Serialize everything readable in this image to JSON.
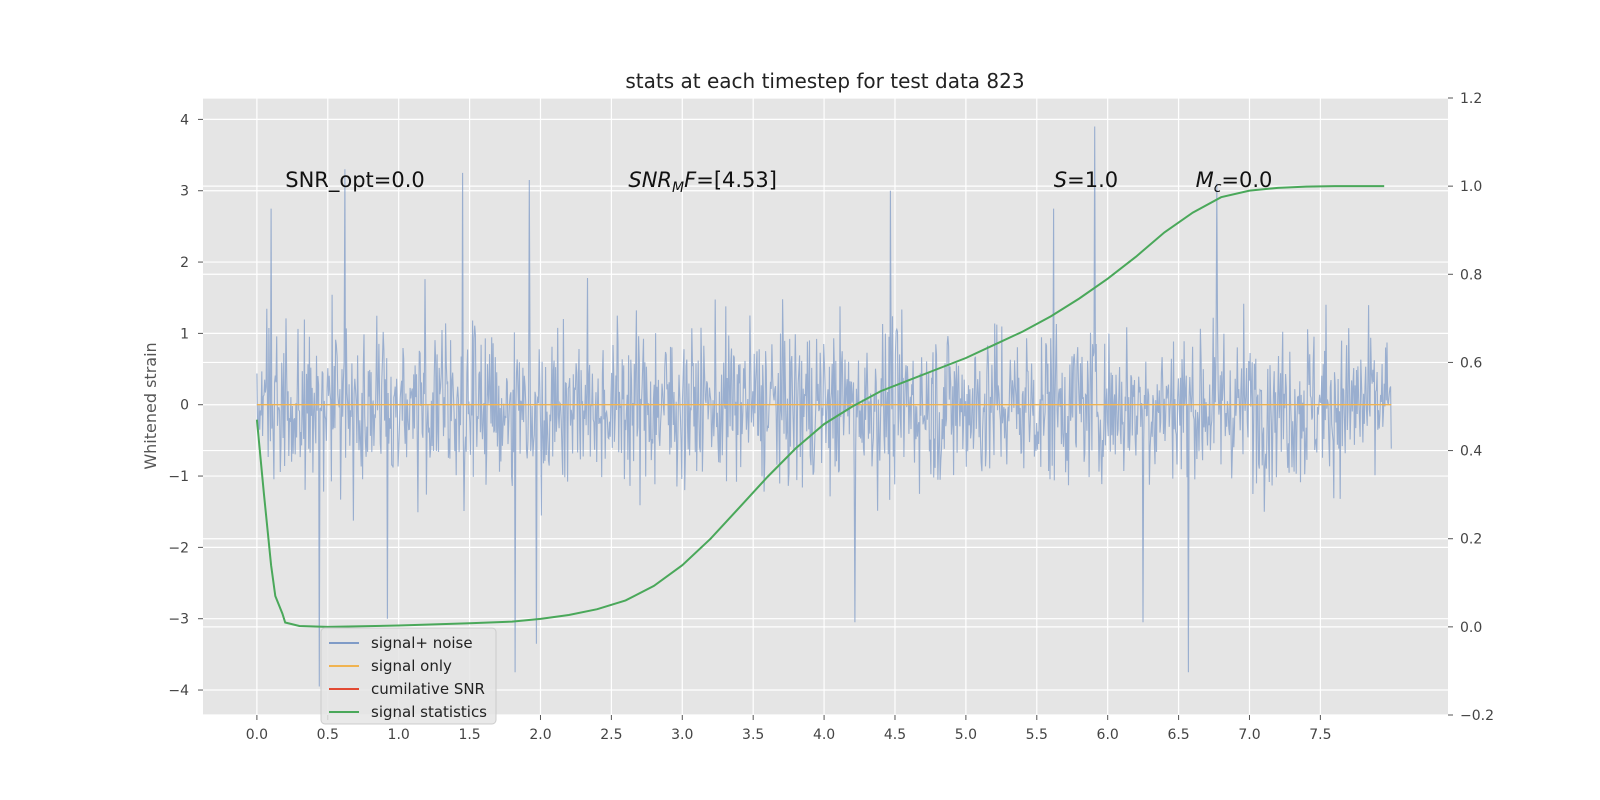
{
  "chart_data": {
    "type": "line",
    "title": "stats at each timestep for test data 823",
    "xlabel": "",
    "ylabel": "Whitened strain",
    "y2label": "",
    "xlim": [
      -0.38,
      8.4
    ],
    "ylim": [
      -4.35,
      4.3
    ],
    "y2lim": [
      -0.2,
      1.2
    ],
    "x_ticks": [
      "0.0",
      "0.5",
      "1.0",
      "1.5",
      "2.0",
      "2.5",
      "3.0",
      "3.5",
      "4.0",
      "4.5",
      "5.0",
      "5.5",
      "6.0",
      "6.5",
      "7.0",
      "7.5"
    ],
    "y_ticks": [
      "4",
      "3",
      "2",
      "1",
      "0",
      "−1",
      "−2",
      "−3",
      "−4"
    ],
    "y2_ticks": [
      "1.2",
      "1.0",
      "0.8",
      "0.6",
      "0.4",
      "0.2",
      "0.0",
      "−0.2"
    ],
    "grid": true,
    "legend_position": "bottom-left",
    "annotations": [
      {
        "text": "SNR_opt=0.0",
        "x": 0.2,
        "y": 3.05
      },
      {
        "text": "SNR",
        "sub": "M",
        "suffix": "F=[4.53]",
        "italic": true,
        "x": 2.62,
        "y": 3.05
      },
      {
        "text": "S",
        "suffix": "=1.0",
        "italic": true,
        "x": 5.62,
        "y": 3.05
      },
      {
        "text": "M",
        "sub": "c",
        "suffix": "=0.0",
        "italic": true,
        "x": 6.62,
        "y": 3.05
      }
    ],
    "noise_envelope": {
      "x_range": [
        0.0,
        8.0
      ],
      "typical_abs": 1.8,
      "extremes": [
        {
          "x": 0.1,
          "y": 2.75
        },
        {
          "x": 0.62,
          "y": 3.3
        },
        {
          "x": 1.45,
          "y": 3.25
        },
        {
          "x": 1.92,
          "y": 3.15
        },
        {
          "x": 4.47,
          "y": 3.0
        },
        {
          "x": 5.62,
          "y": 2.75
        },
        {
          "x": 5.91,
          "y": 3.9
        },
        {
          "x": 6.77,
          "y": 3.1
        },
        {
          "x": 0.44,
          "y": -3.95
        },
        {
          "x": 0.92,
          "y": -3.0
        },
        {
          "x": 1.82,
          "y": -3.75
        },
        {
          "x": 1.97,
          "y": -3.35
        },
        {
          "x": 4.22,
          "y": -3.05
        },
        {
          "x": 6.25,
          "y": -3.05
        },
        {
          "x": 6.57,
          "y": -3.75
        }
      ]
    },
    "series": [
      {
        "name": "signal+ noise",
        "color": "#7f9bc7",
        "axis": "left",
        "kind": "noise",
        "x": [
          0.0,
          8.0
        ]
      },
      {
        "name": "signal only",
        "color": "#f0b350",
        "axis": "left",
        "x": [
          0.0,
          8.0
        ],
        "y": [
          0.0,
          0.0
        ]
      },
      {
        "name": "cumilative SNR",
        "color": "#e24a33",
        "axis": "right",
        "x": [],
        "y": []
      },
      {
        "name": "signal statistics",
        "color": "#4aa85a",
        "axis": "right",
        "x": [
          0.0,
          0.05,
          0.1,
          0.13,
          0.18,
          0.2,
          0.3,
          0.5,
          1.0,
          1.5,
          1.8,
          2.0,
          2.2,
          2.4,
          2.6,
          2.8,
          3.0,
          3.2,
          3.4,
          3.6,
          3.8,
          4.0,
          4.2,
          4.4,
          4.6,
          4.8,
          5.0,
          5.2,
          5.4,
          5.6,
          5.8,
          6.0,
          6.2,
          6.4,
          6.6,
          6.8,
          7.0,
          7.2,
          7.4,
          7.6,
          7.95
        ],
        "y": [
          0.47,
          0.3,
          0.14,
          0.07,
          0.03,
          0.01,
          0.002,
          0.0,
          0.003,
          0.008,
          0.012,
          0.018,
          0.027,
          0.04,
          0.06,
          0.093,
          0.14,
          0.2,
          0.27,
          0.34,
          0.405,
          0.46,
          0.5,
          0.535,
          0.56,
          0.585,
          0.61,
          0.64,
          0.67,
          0.705,
          0.745,
          0.79,
          0.84,
          0.895,
          0.94,
          0.975,
          0.99,
          0.996,
          0.999,
          1.0,
          1.0
        ]
      }
    ]
  }
}
